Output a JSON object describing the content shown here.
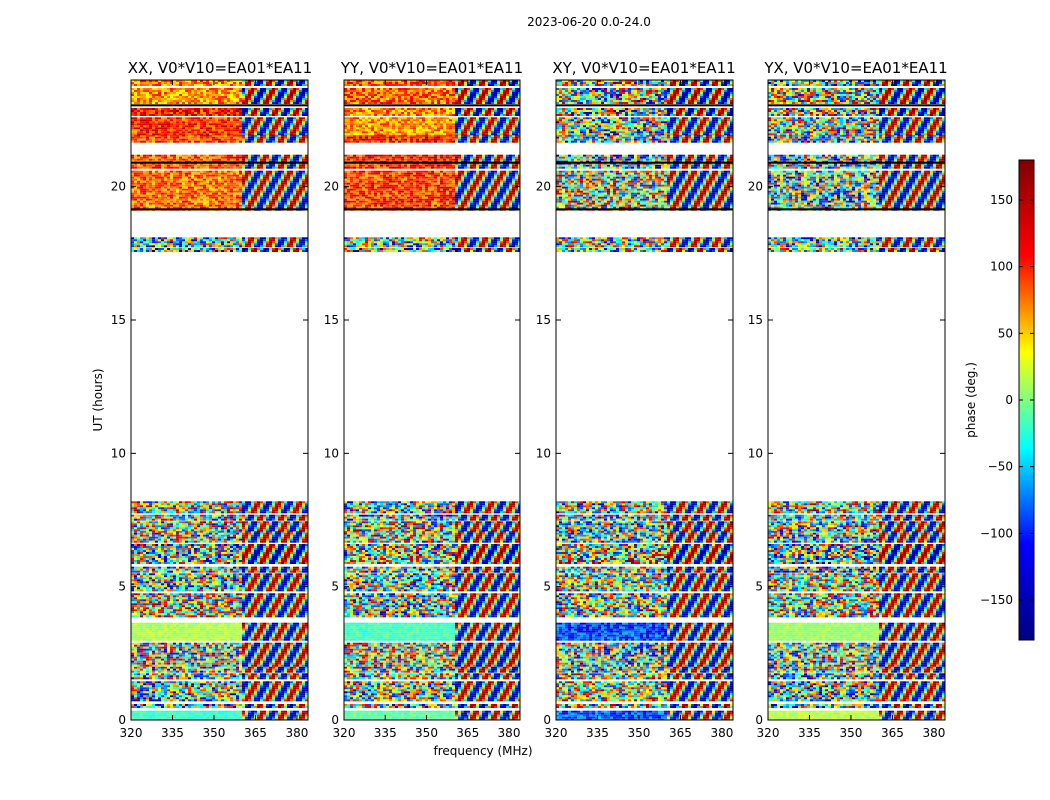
{
  "chart_data": {
    "type": "heatmap",
    "suptitle": "2023-06-20 0.0-24.0",
    "xlabel": "frequency (MHz)",
    "ylabel": "UT (hours)",
    "xlim": [
      320,
      384
    ],
    "ylim": [
      0,
      24
    ],
    "xticks": [
      320,
      335,
      350,
      365,
      380
    ],
    "yticks": [
      0,
      5,
      10,
      15,
      20
    ],
    "panels": [
      {
        "title": "XX, V0*V10=EA01*EA11"
      },
      {
        "title": "YY, V0*V10=EA01*EA11"
      },
      {
        "title": "XY, V0*V10=EA01*EA11"
      },
      {
        "title": "YX, V0*V10=EA01*EA11"
      }
    ],
    "data_bands_hours": [
      [
        0.0,
        0.35
      ],
      [
        0.45,
        0.6
      ],
      [
        0.75,
        1.45
      ],
      [
        1.55,
        1.75
      ],
      [
        1.8,
        2.0
      ],
      [
        2.05,
        2.9
      ],
      [
        3.0,
        3.65
      ],
      [
        3.85,
        4.75
      ],
      [
        4.85,
        5.5
      ],
      [
        5.6,
        5.75
      ],
      [
        5.85,
        6.6
      ],
      [
        6.7,
        7.1
      ],
      [
        7.15,
        7.45
      ],
      [
        7.5,
        7.7
      ],
      [
        7.75,
        8.2
      ],
      [
        17.6,
        17.7
      ],
      [
        17.8,
        18.1
      ],
      [
        19.1,
        20.6
      ],
      [
        20.7,
        21.2
      ],
      [
        21.65,
        21.95
      ],
      [
        22.0,
        22.6
      ],
      [
        22.65,
        22.95
      ],
      [
        23.1,
        23.7
      ],
      [
        23.8,
        24.0
      ]
    ],
    "flagged_lines_hours": [
      19.15,
      20.9,
      23.05
    ],
    "colorbar": {
      "label": "phase (deg.)",
      "range": [
        -180,
        180
      ],
      "ticks": [
        150,
        100,
        50,
        0,
        -50,
        -100,
        -150
      ],
      "colormap": "jet",
      "stops": [
        "#000080",
        "#0000ff",
        "#00ffff",
        "#ffff00",
        "#ff0000",
        "#800000"
      ]
    }
  }
}
